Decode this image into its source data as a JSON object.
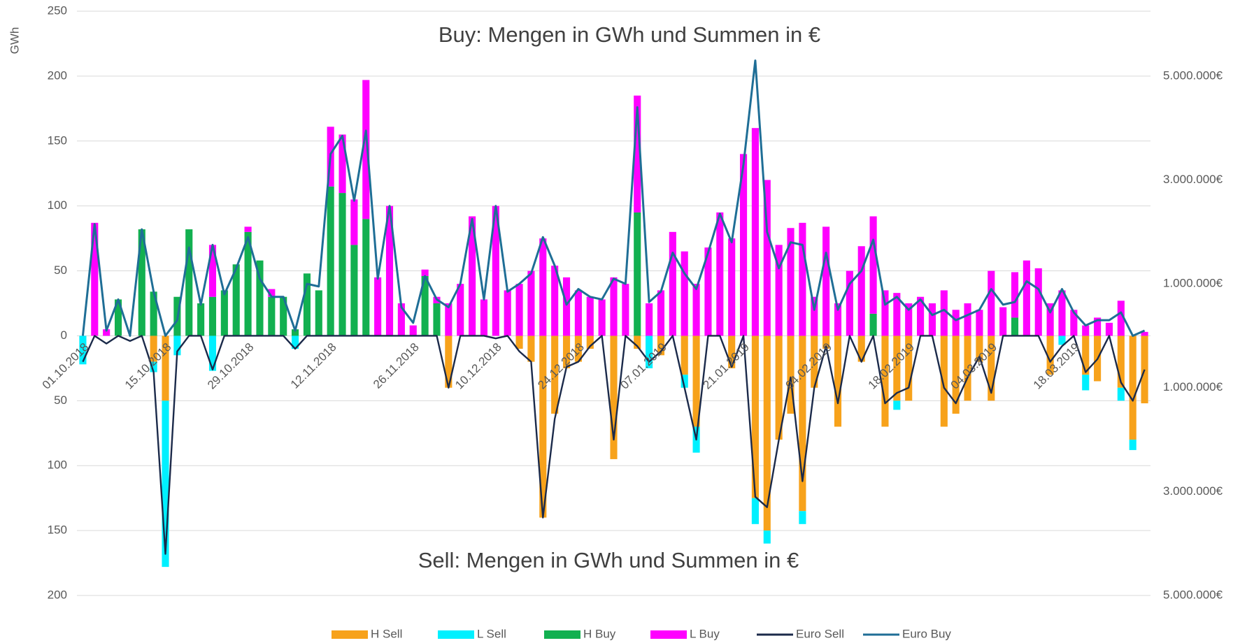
{
  "chart_data": {
    "type": "bar",
    "stacked": true,
    "annotations": [
      "Buy: Mengen in GWh und Summen in €",
      "Sell: Mengen in GWh und Summen in €"
    ],
    "y_label": "GWh",
    "categories": [
      "01.10.2018",
      null,
      null,
      null,
      null,
      null,
      null,
      "15.10.2018",
      null,
      null,
      null,
      null,
      null,
      null,
      "29.10.2018",
      null,
      null,
      null,
      null,
      null,
      null,
      "12.11.2018",
      null,
      null,
      null,
      null,
      null,
      null,
      "26.11.2018",
      null,
      null,
      null,
      null,
      null,
      null,
      "10.12.2018",
      null,
      null,
      null,
      null,
      null,
      null,
      "24.12.2018",
      null,
      null,
      null,
      null,
      null,
      null,
      "07.01.2019",
      null,
      null,
      null,
      null,
      null,
      null,
      "21.01.2019",
      null,
      null,
      null,
      null,
      null,
      null,
      "04.02.2019",
      null,
      null,
      null,
      null,
      null,
      null,
      "18.02.2019",
      null,
      null,
      null,
      null,
      null,
      null,
      "04.03.2019",
      null,
      null,
      null,
      null,
      null,
      null,
      "18.03.2019",
      null,
      null,
      null,
      null,
      null,
      null
    ],
    "ylim": [
      -200,
      250
    ],
    "yticks": [
      {
        "value": -200,
        "label": "200"
      },
      {
        "value": -150,
        "label": "150"
      },
      {
        "value": -100,
        "label": "100"
      },
      {
        "value": -50,
        "label": "50"
      },
      0,
      50,
      100,
      150,
      200,
      250
    ],
    "y2lim": [
      -5000000,
      6250000
    ],
    "y2ticks": [
      {
        "value": -5000000,
        "label": "5.000.000€"
      },
      {
        "value": -3000000,
        "label": "3.000.000€"
      },
      {
        "value": -1000000,
        "label": "1.000.000€"
      },
      {
        "value": 1000000,
        "label": "1.000.000€"
      },
      {
        "value": 3000000,
        "label": "3.000.000€"
      },
      {
        "value": 5000000,
        "label": "5.000.000€"
      }
    ],
    "grid": true,
    "legend": "bottom",
    "series": [
      {
        "name": "H Sell",
        "type": "bar",
        "color": "#f7a21b",
        "values": [
          0,
          0,
          0,
          0,
          0,
          0,
          -20,
          -50,
          0,
          0,
          0,
          0,
          0,
          0,
          0,
          0,
          0,
          0,
          0,
          0,
          0,
          0,
          0,
          0,
          0,
          0,
          0,
          0,
          0,
          0,
          0,
          -40,
          0,
          0,
          0,
          0,
          0,
          -10,
          -20,
          -140,
          -60,
          -25,
          -20,
          -10,
          0,
          -95,
          0,
          -10,
          0,
          -15,
          0,
          -30,
          -70,
          0,
          0,
          -25,
          0,
          -125,
          -150,
          -80,
          -60,
          -135,
          -40,
          -10,
          -70,
          0,
          -20,
          0,
          -70,
          -50,
          -50,
          0,
          0,
          -70,
          -60,
          -50,
          -20,
          -50,
          0,
          0,
          0,
          0,
          -30,
          0,
          0,
          -30,
          -35,
          0,
          -40,
          -80,
          -52
        ]
      },
      {
        "name": "L Sell",
        "type": "bar",
        "color": "#00f0ff",
        "values": [
          -22,
          0,
          0,
          0,
          0,
          0,
          -8,
          -128,
          -15,
          0,
          0,
          -27,
          0,
          0,
          0,
          0,
          0,
          0,
          -10,
          0,
          0,
          0,
          0,
          0,
          0,
          0,
          0,
          0,
          0,
          0,
          0,
          0,
          0,
          0,
          0,
          0,
          0,
          0,
          0,
          0,
          0,
          0,
          0,
          0,
          0,
          0,
          0,
          0,
          -25,
          0,
          0,
          -10,
          -20,
          0,
          0,
          0,
          0,
          -20,
          -10,
          0,
          0,
          -10,
          0,
          0,
          0,
          0,
          0,
          0,
          0,
          -7,
          0,
          0,
          0,
          0,
          0,
          0,
          0,
          0,
          0,
          0,
          0,
          0,
          0,
          -7,
          0,
          -12,
          0,
          0,
          -10,
          -8,
          0
        ]
      },
      {
        "name": "H Buy",
        "type": "bar",
        "color": "#12b050",
        "values": [
          0,
          0,
          0,
          28,
          0,
          82,
          34,
          0,
          30,
          82,
          25,
          30,
          35,
          55,
          80,
          58,
          30,
          30,
          5,
          48,
          35,
          115,
          110,
          70,
          90,
          0,
          0,
          0,
          0,
          46,
          25,
          0,
          0,
          0,
          0,
          0,
          0,
          0,
          0,
          0,
          0,
          0,
          0,
          0,
          0,
          0,
          0,
          95,
          0,
          0,
          0,
          0,
          0,
          0,
          0,
          0,
          0,
          0,
          0,
          0,
          0,
          0,
          0,
          0,
          0,
          0,
          0,
          17,
          0,
          0,
          0,
          0,
          0,
          0,
          0,
          0,
          0,
          0,
          0,
          14,
          0,
          0,
          0,
          0,
          0,
          0,
          0,
          0,
          0,
          0,
          0
        ]
      },
      {
        "name": "L Buy",
        "type": "bar",
        "color": "#ff00ff",
        "values": [
          0,
          87,
          5,
          0,
          0,
          0,
          0,
          0,
          0,
          0,
          0,
          40,
          0,
          0,
          4,
          0,
          6,
          0,
          0,
          0,
          0,
          46,
          45,
          35,
          107,
          45,
          100,
          25,
          8,
          5,
          5,
          25,
          40,
          92,
          28,
          100,
          35,
          40,
          50,
          75,
          54,
          45,
          35,
          30,
          28,
          45,
          40,
          90,
          25,
          35,
          80,
          65,
          40,
          68,
          95,
          75,
          140,
          160,
          120,
          70,
          83,
          87,
          30,
          84,
          25,
          50,
          69,
          75,
          35,
          33,
          25,
          30,
          25,
          35,
          20,
          25,
          20,
          50,
          22,
          35,
          58,
          52,
          25,
          35,
          20,
          8,
          14,
          10,
          27,
          0,
          3
        ]
      },
      {
        "name": "Euro Sell",
        "type": "line",
        "axis": "y2",
        "color": "#1b2a4a",
        "values": [
          -500000,
          0,
          -150000,
          0,
          -100000,
          0,
          -700000,
          -4200000,
          -300000,
          0,
          0,
          -650000,
          0,
          0,
          0,
          0,
          0,
          0,
          -250000,
          0,
          0,
          0,
          0,
          0,
          0,
          0,
          0,
          0,
          0,
          0,
          0,
          -1000000,
          0,
          0,
          0,
          -50000,
          0,
          -300000,
          -500000,
          -3500000,
          -1600000,
          -600000,
          -500000,
          -200000,
          0,
          -2000000,
          0,
          -200000,
          -500000,
          -300000,
          0,
          -1000000,
          -2000000,
          0,
          0,
          -600000,
          0,
          -3100000,
          -3300000,
          -2000000,
          -800000,
          -2800000,
          -1000000,
          -200000,
          -1300000,
          0,
          -500000,
          0,
          -1300000,
          -1100000,
          -1000000,
          0,
          0,
          -1000000,
          -1300000,
          -800000,
          -400000,
          -1100000,
          0,
          0,
          0,
          0,
          -500000,
          -200000,
          0,
          -700000,
          -450000,
          0,
          -900000,
          -1250000,
          -650000
        ]
      },
      {
        "name": "Euro Buy",
        "type": "line",
        "axis": "y2",
        "color": "#1f6e96",
        "values": [
          0,
          2150000,
          100000,
          700000,
          0,
          2050000,
          850000,
          0,
          300000,
          1700000,
          600000,
          1750000,
          800000,
          1300000,
          1900000,
          1100000,
          750000,
          750000,
          100000,
          1000000,
          950000,
          3500000,
          3850000,
          2600000,
          3950000,
          1100000,
          2500000,
          550000,
          250000,
          1150000,
          700000,
          550000,
          1000000,
          2250000,
          700000,
          2500000,
          850000,
          1000000,
          1200000,
          1900000,
          1350000,
          600000,
          900000,
          750000,
          700000,
          1100000,
          1000000,
          4400000,
          650000,
          850000,
          1600000,
          1200000,
          900000,
          1600000,
          2350000,
          1800000,
          3300000,
          5300000,
          2000000,
          1300000,
          1800000,
          1750000,
          500000,
          1600000,
          500000,
          1000000,
          1250000,
          1850000,
          600000,
          750000,
          500000,
          700000,
          400000,
          500000,
          300000,
          400000,
          500000,
          900000,
          600000,
          650000,
          1050000,
          900000,
          450000,
          900000,
          450000,
          200000,
          300000,
          300000,
          450000,
          0,
          100000
        ]
      }
    ]
  }
}
